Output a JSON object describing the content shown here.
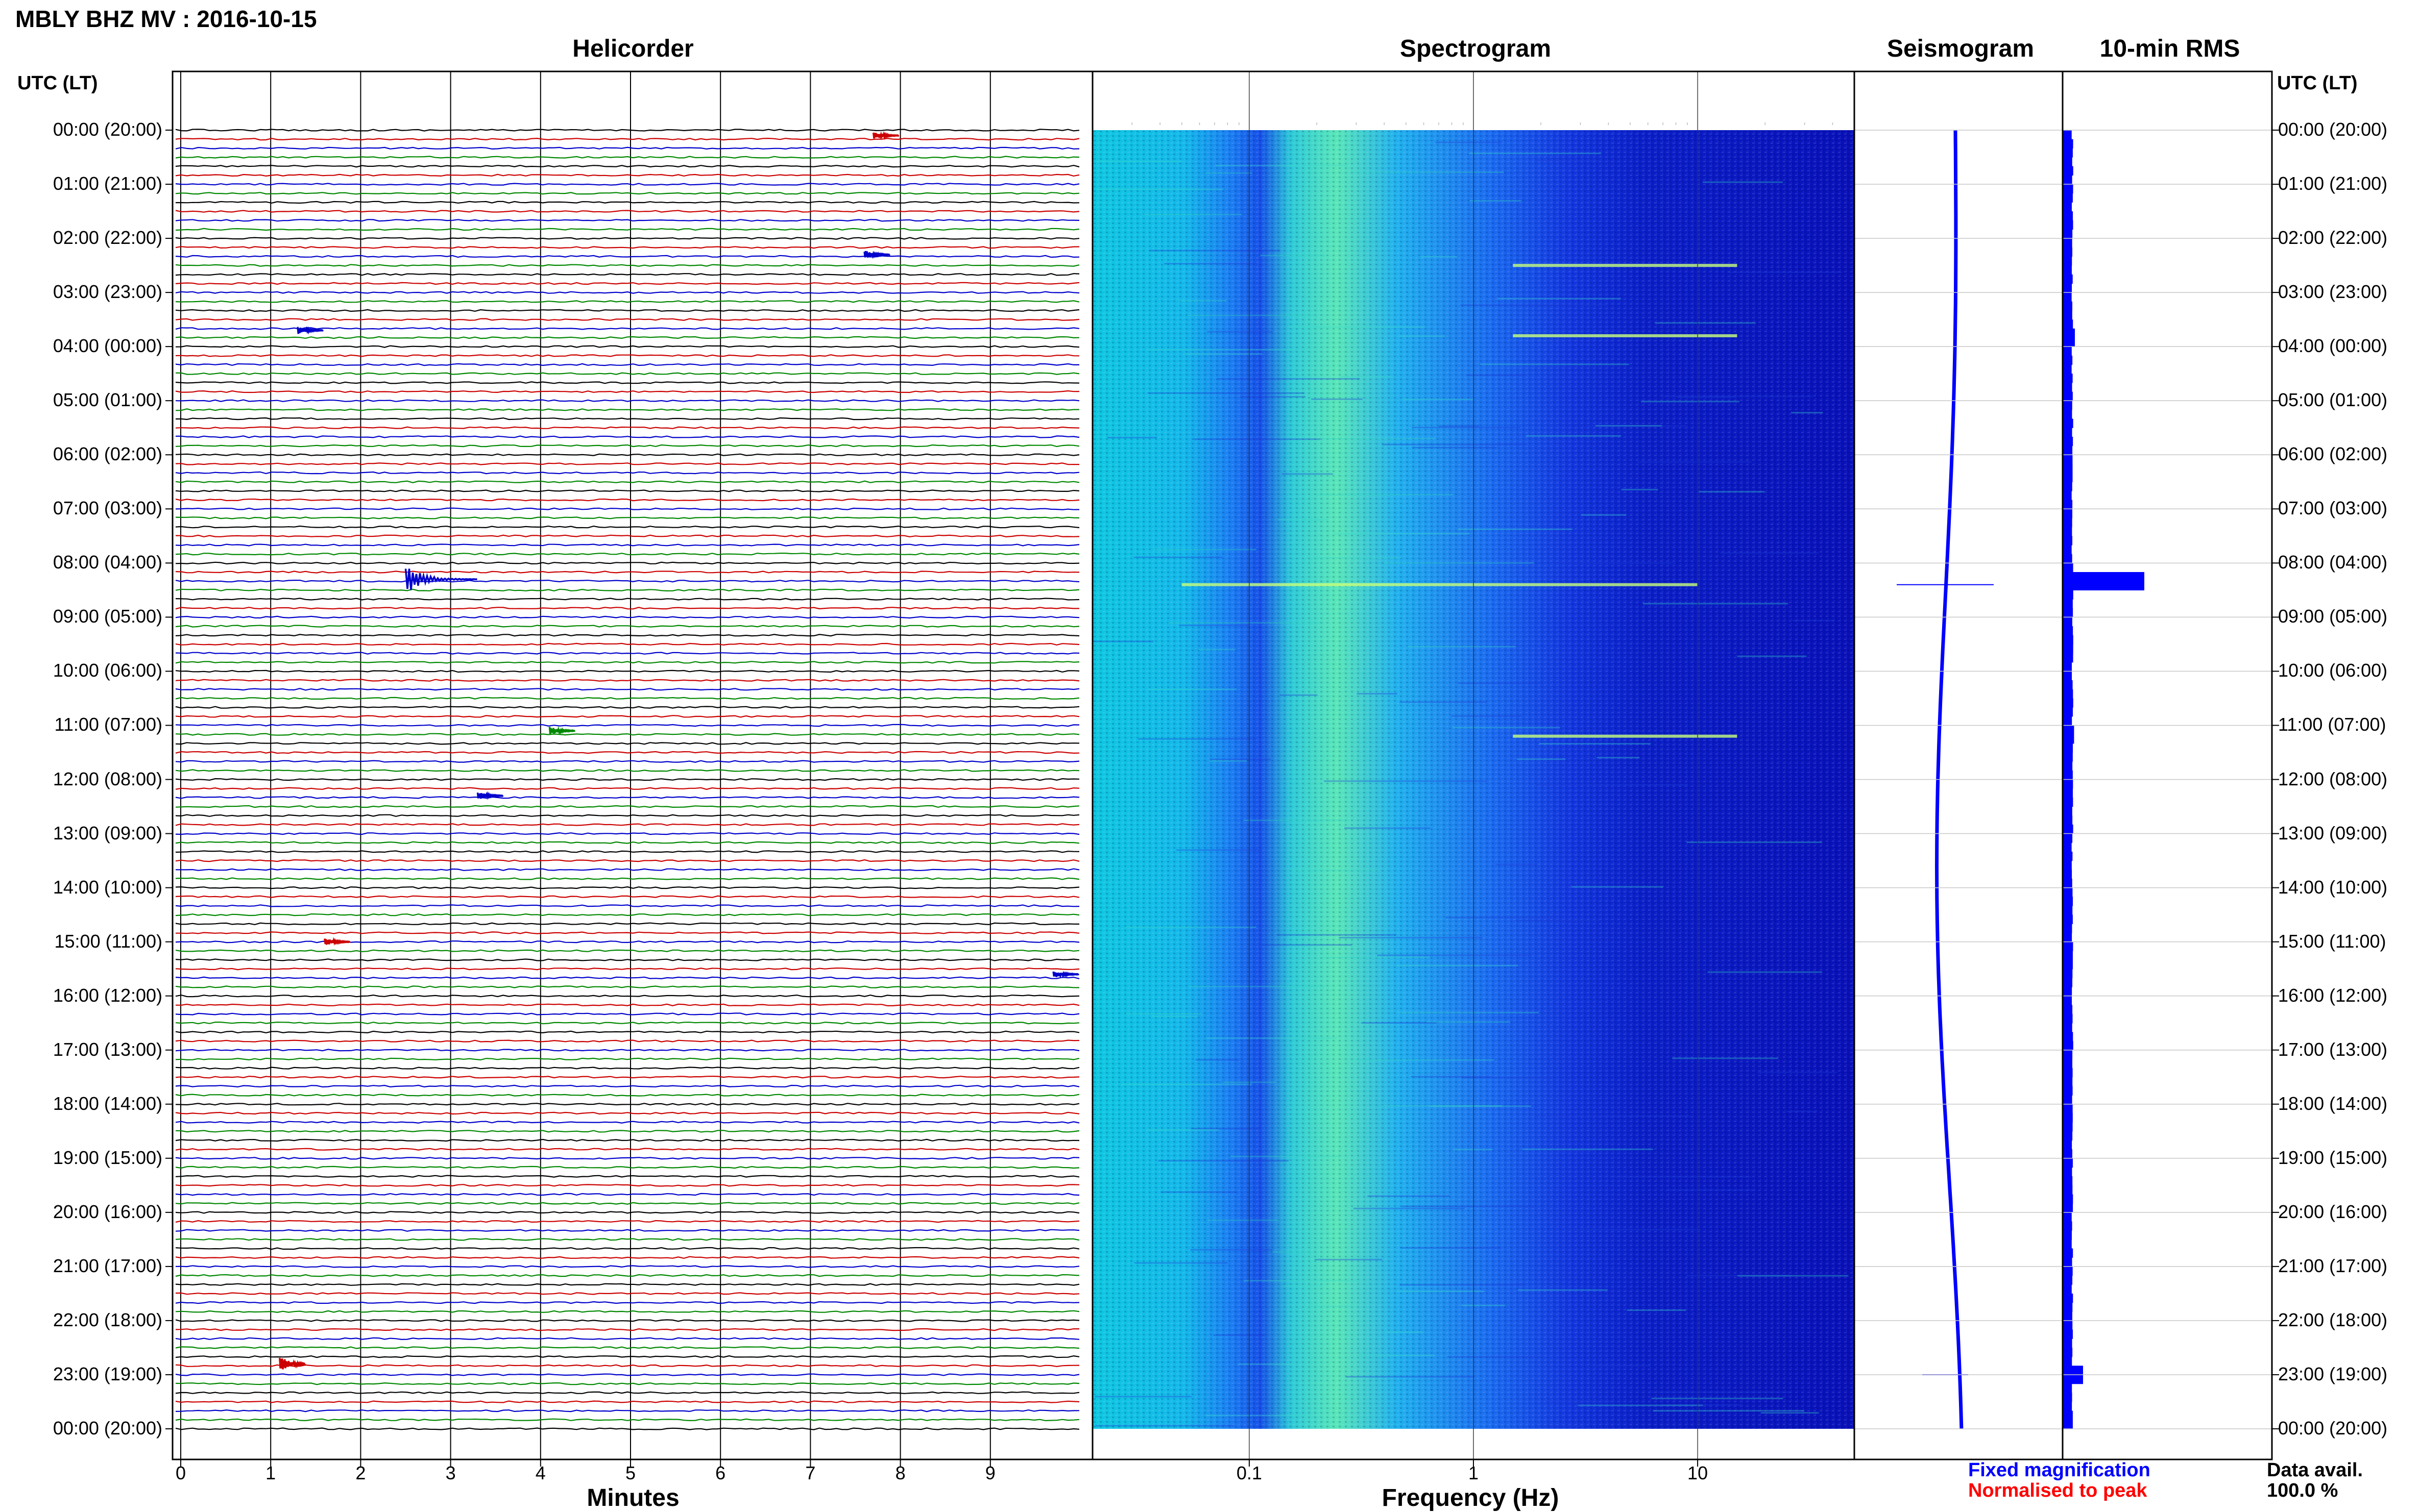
{
  "page_title": "MBLY BHZ MV : 2016-10-15",
  "panels": {
    "helicorder": "Helicorder",
    "spectrogram": "Spectrogram",
    "seismogram": "Seismogram",
    "rms": "10-min RMS"
  },
  "axis_header_left": "UTC (LT)",
  "axis_header_right": "UTC (LT)",
  "time_labels": [
    "00:00 (20:00)",
    "01:00 (21:00)",
    "02:00 (22:00)",
    "03:00 (23:00)",
    "04:00 (00:00)",
    "05:00 (01:00)",
    "06:00 (02:00)",
    "07:00 (03:00)",
    "08:00 (04:00)",
    "09:00 (05:00)",
    "10:00 (06:00)",
    "11:00 (07:00)",
    "12:00 (08:00)",
    "13:00 (09:00)",
    "14:00 (10:00)",
    "15:00 (11:00)",
    "16:00 (12:00)",
    "17:00 (13:00)",
    "18:00 (14:00)",
    "19:00 (15:00)",
    "20:00 (16:00)",
    "21:00 (17:00)",
    "22:00 (18:00)",
    "23:00 (19:00)",
    "00:00 (20:00)"
  ],
  "minutes_axis": {
    "label": "Minutes",
    "ticks": [
      "0",
      "1",
      "2",
      "3",
      "4",
      "5",
      "6",
      "7",
      "8",
      "9"
    ]
  },
  "frequency_axis": {
    "label": "Frequency (Hz)",
    "ticks": [
      "0.1",
      "1",
      "10"
    ]
  },
  "legend": {
    "fixed": "Fixed magnification",
    "normalised": "Normalised to peak"
  },
  "data_avail": {
    "label": "Data avail.",
    "value": "100.0 %"
  },
  "colors": {
    "trace_cycle": [
      "#000000",
      "#cc0000",
      "#0000cc",
      "#008800"
    ],
    "spectrogram_low": "#00008b",
    "spectrogram_high": "#00ffd0",
    "rms_bar": "#0000ff"
  },
  "chart_data": [
    {
      "type": "line",
      "name": "helicorder",
      "x_unit": "minutes",
      "xlim": [
        0,
        10
      ],
      "rows_per_hour": 6,
      "hours": 24,
      "events": [
        {
          "hour": 0.1,
          "minute": 7.7,
          "amplitude": 1,
          "color_index": 1
        },
        {
          "hour": 2.3,
          "minute": 7.6,
          "amplitude": 1,
          "color_index": 2
        },
        {
          "hour": 3.7,
          "minute": 1.3,
          "amplitude": 1,
          "color_index": 2
        },
        {
          "hour": 8.3,
          "minute": 2.5,
          "amplitude": 4,
          "color_index": 2
        },
        {
          "hour": 11.1,
          "minute": 4.1,
          "amplitude": 1,
          "color_index": 3
        },
        {
          "hour": 12.3,
          "minute": 3.3,
          "amplitude": 1,
          "color_index": 2
        },
        {
          "hour": 15.0,
          "minute": 1.6,
          "amplitude": 1,
          "color_index": 1
        },
        {
          "hour": 15.6,
          "minute": 9.7,
          "amplitude": 1,
          "color_index": 2
        },
        {
          "hour": 22.8,
          "minute": 1.1,
          "amplitude": 2,
          "color_index": 1
        }
      ]
    },
    {
      "type": "heatmap",
      "name": "spectrogram",
      "x_scale": "log",
      "xlim": [
        0.02,
        50
      ],
      "y_unit": "hours UTC",
      "ylim": [
        0,
        24
      ],
      "highlight_lines_hour": [
        8.4,
        11.2,
        2.5,
        3.8
      ]
    },
    {
      "type": "line",
      "name": "seismogram",
      "ylim": [
        0,
        24
      ],
      "spikes_hour": [
        8.4,
        23.0
      ]
    },
    {
      "type": "bar",
      "name": "10-min RMS",
      "orientation": "horizontal",
      "ylim": [
        0,
        24
      ],
      "baseline_relative": 0.12,
      "peaks": [
        {
          "hour": 8.4,
          "relative": 1.0
        },
        {
          "hour": 23.0,
          "relative": 0.25
        },
        {
          "hour": 3.8,
          "relative": 0.15
        },
        {
          "hour": 11.2,
          "relative": 0.14
        },
        {
          "hour": 2.0,
          "relative": 0.1
        }
      ]
    }
  ]
}
